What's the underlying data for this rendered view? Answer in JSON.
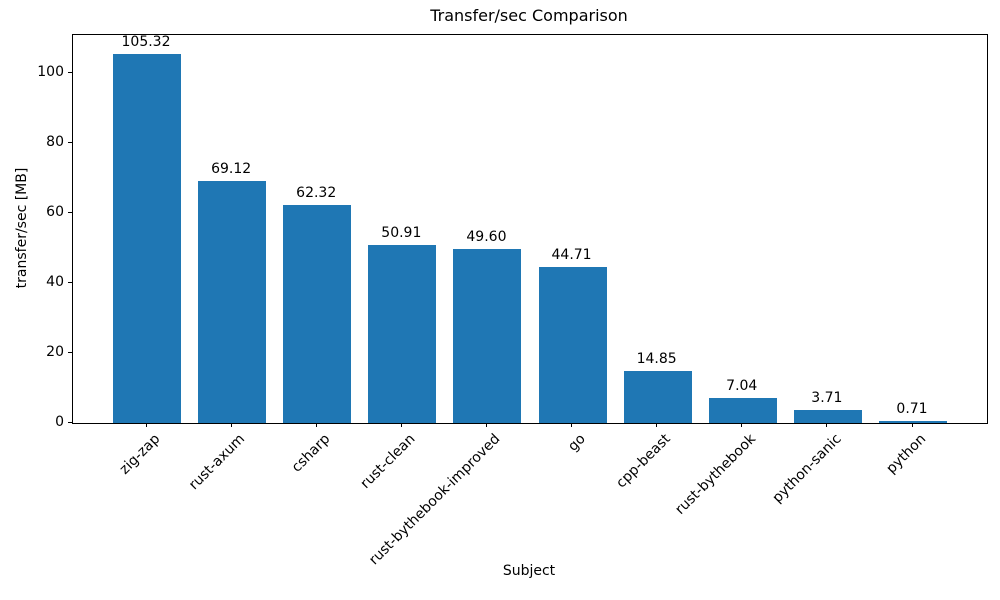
{
  "chart_data": {
    "type": "bar",
    "title": "Transfer/sec Comparison",
    "xlabel": "Subject",
    "ylabel": "transfer/sec [MB]",
    "categories": [
      "zig-zap",
      "rust-axum",
      "csharp",
      "rust-clean",
      "rust-bythebook-improved",
      "go",
      "cpp-beast",
      "rust-bythebook",
      "python-sanic",
      "python"
    ],
    "values": [
      105.32,
      69.12,
      62.32,
      50.91,
      49.6,
      44.71,
      14.85,
      7.04,
      3.71,
      0.71
    ],
    "value_labels": [
      "105.32",
      "69.12",
      "62.32",
      "50.91",
      "49.60",
      "44.71",
      "14.85",
      "7.04",
      "3.71",
      "0.71"
    ],
    "yticks": [
      0,
      20,
      40,
      60,
      80,
      100
    ],
    "ylim": [
      0,
      110.86
    ],
    "bar_color": "#1f77b4",
    "text_color": "#000000",
    "background_color": "#ffffff",
    "grid": false,
    "legend_position": "none",
    "xtick_rotation": 45
  }
}
